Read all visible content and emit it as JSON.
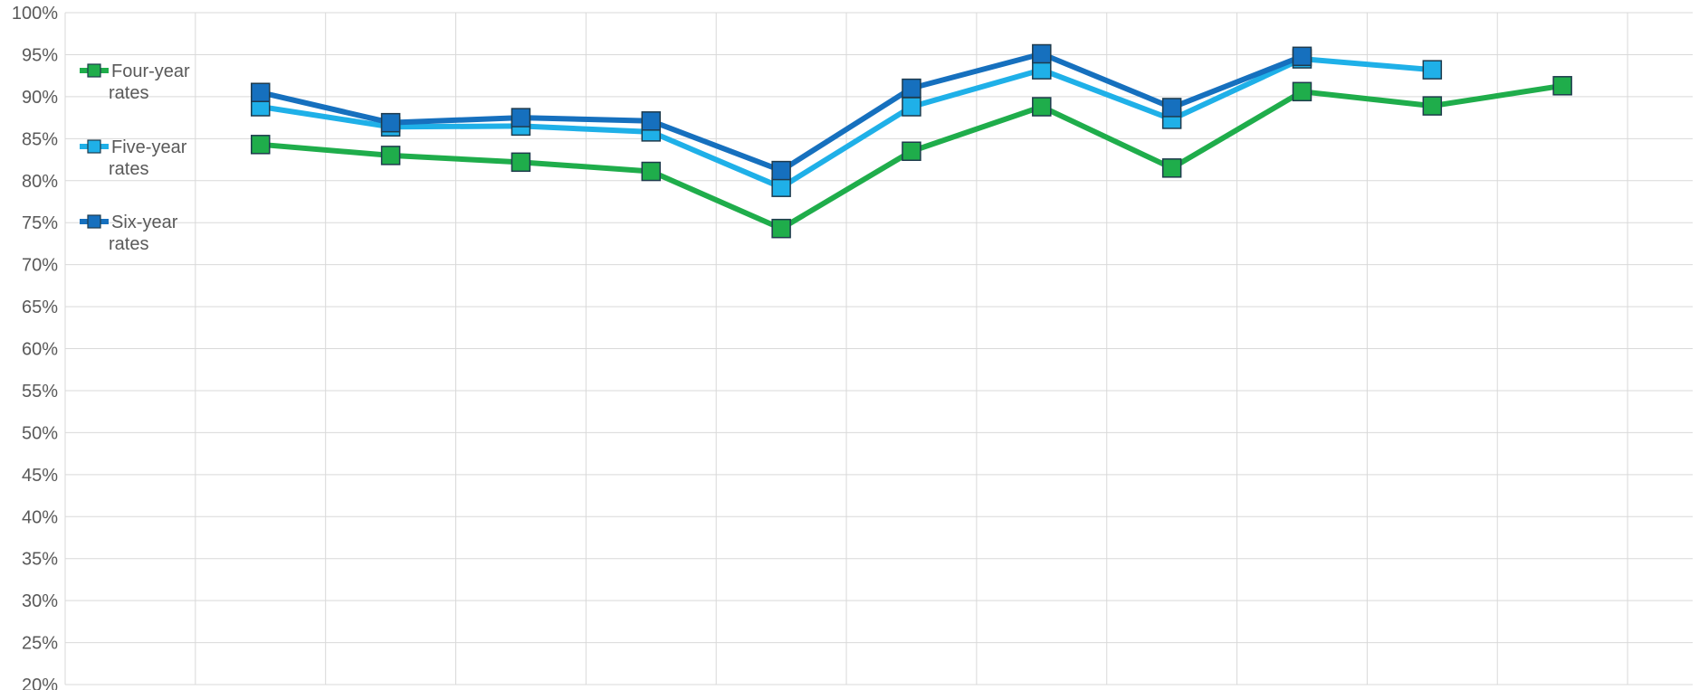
{
  "chart_data": {
    "type": "line",
    "title": "",
    "xlabel": "",
    "ylabel": "",
    "ylim": [
      0.2,
      1.0
    ],
    "y_ticks": [
      "20%",
      "25%",
      "30%",
      "35%",
      "40%",
      "45%",
      "50%",
      "55%",
      "60%",
      "65%",
      "70%",
      "75%",
      "80%",
      "85%",
      "90%",
      "95%",
      "100%"
    ],
    "grid": true,
    "legend_position": "left",
    "categories_count": 13,
    "series": [
      {
        "name": "Four-year rates",
        "legend_lines": [
          "Four-year",
          "rates"
        ],
        "color": "#1fad4b",
        "values": [
          null,
          0.843,
          0.83,
          0.822,
          0.811,
          0.743,
          0.835,
          0.888,
          0.815,
          0.906,
          0.889,
          0.913,
          null
        ]
      },
      {
        "name": "Five-year rates",
        "legend_lines": [
          "Five-year",
          "rates"
        ],
        "color": "#1fb0e8",
        "values": [
          null,
          0.888,
          0.864,
          0.865,
          0.858,
          0.792,
          0.888,
          0.932,
          0.873,
          0.945,
          0.932,
          null,
          null
        ]
      },
      {
        "name": "Six-year rates",
        "legend_lines": [
          "Six-year",
          "rates"
        ],
        "color": "#1670be",
        "values": [
          null,
          0.905,
          0.869,
          0.875,
          0.871,
          0.812,
          0.91,
          0.951,
          0.887,
          0.948,
          null,
          null,
          null
        ]
      }
    ]
  }
}
